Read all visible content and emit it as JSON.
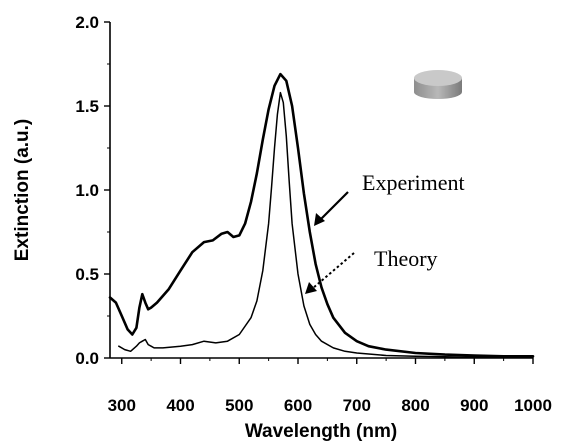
{
  "chart_data": {
    "type": "line",
    "title": "",
    "xlabel": "Wavelength (nm)",
    "ylabel": "Extinction (a.u.)",
    "xlim": [
      280,
      1000
    ],
    "ylim": [
      0,
      2.0
    ],
    "x_ticks": [
      300,
      400,
      500,
      600,
      700,
      800,
      900,
      1000
    ],
    "y_ticks": [
      0.0,
      0.5,
      1.0,
      1.5,
      2.0
    ],
    "x_tick_labels": [
      "300",
      "400",
      "500",
      "600",
      "700",
      "800",
      "900",
      "1000"
    ],
    "y_tick_labels": [
      "0.0",
      "0.5",
      "1.0",
      "1.5",
      "2.0"
    ],
    "grid": false,
    "legend": "none",
    "series": [
      {
        "name": "Experiment",
        "color": "#000000",
        "line": "thick",
        "x": [
          280,
          290,
          300,
          310,
          318,
          325,
          330,
          335,
          340,
          345,
          350,
          360,
          380,
          400,
          420,
          440,
          455,
          470,
          480,
          490,
          500,
          510,
          520,
          530,
          540,
          550,
          560,
          570,
          580,
          590,
          600,
          610,
          620,
          630,
          640,
          650,
          660,
          680,
          700,
          720,
          750,
          800,
          850,
          900,
          950,
          1000
        ],
        "y": [
          0.36,
          0.33,
          0.25,
          0.17,
          0.14,
          0.18,
          0.3,
          0.38,
          0.33,
          0.29,
          0.3,
          0.33,
          0.41,
          0.52,
          0.63,
          0.69,
          0.7,
          0.74,
          0.75,
          0.72,
          0.73,
          0.8,
          0.93,
          1.1,
          1.3,
          1.48,
          1.62,
          1.69,
          1.65,
          1.5,
          1.25,
          0.98,
          0.75,
          0.56,
          0.42,
          0.32,
          0.24,
          0.15,
          0.1,
          0.07,
          0.05,
          0.03,
          0.02,
          0.015,
          0.01,
          0.01
        ]
      },
      {
        "name": "Theory",
        "color": "#000000",
        "line": "thin",
        "x": [
          295,
          305,
          315,
          325,
          330,
          335,
          340,
          345,
          350,
          355,
          370,
          400,
          420,
          440,
          460,
          480,
          500,
          520,
          530,
          540,
          550,
          555,
          560,
          565,
          570,
          575,
          580,
          585,
          590,
          600,
          610,
          620,
          630,
          640,
          660,
          680,
          700,
          750,
          800,
          850,
          900,
          950,
          1000
        ],
        "y": [
          0.07,
          0.05,
          0.04,
          0.07,
          0.09,
          0.1,
          0.11,
          0.08,
          0.07,
          0.06,
          0.06,
          0.07,
          0.08,
          0.1,
          0.09,
          0.1,
          0.14,
          0.24,
          0.34,
          0.52,
          0.8,
          1.02,
          1.25,
          1.45,
          1.58,
          1.52,
          1.32,
          1.05,
          0.8,
          0.5,
          0.31,
          0.2,
          0.14,
          0.1,
          0.06,
          0.04,
          0.03,
          0.015,
          0.01,
          0.007,
          0.005,
          0.004,
          0.003
        ]
      }
    ],
    "annotations": [
      {
        "text": "Experiment",
        "series": "Experiment",
        "arrow": "solid"
      },
      {
        "text": "Theory",
        "series": "Theory",
        "arrow": "dotted"
      }
    ]
  }
}
